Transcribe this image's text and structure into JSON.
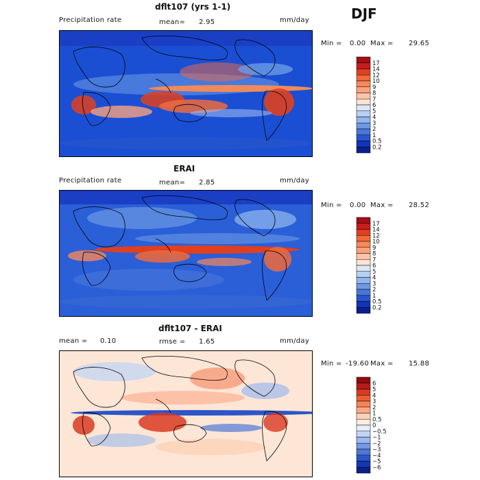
{
  "season": "DJF",
  "chart_data": [
    {
      "type": "heatmap",
      "title": "dflt107 (yrs 1-1)",
      "left_label": "Precipitation rate",
      "center_label": "mean=",
      "center_value": "2.95",
      "units": "mm/day",
      "min_max": {
        "min_label": "Min =",
        "min": "0.00",
        "max_label": "Max =",
        "max": "29.65"
      },
      "colorbar": {
        "levels": [
          "17",
          "14",
          "12",
          "10",
          "9",
          "8",
          "7",
          "6",
          "5",
          "4",
          "3",
          "2",
          "1",
          "0.5",
          "0.2"
        ],
        "colors": [
          "#a50f15",
          "#c81d1d",
          "#e0401f",
          "#f06a3a",
          "#f8875a",
          "#fba27f",
          "#fdc4a9",
          "#fde4d2",
          "#dbe7f7",
          "#b7cff2",
          "#94b5ec",
          "#6f98e4",
          "#4a77da",
          "#2a55cc",
          "#1235b8",
          "#0a1f8f"
        ]
      }
    },
    {
      "type": "heatmap",
      "title": "ERAI",
      "left_label": "Precipitation rate",
      "center_label": "mean=",
      "center_value": "2.85",
      "units": "mm/day",
      "min_max": {
        "min_label": "Min =",
        "min": "0.00",
        "max_label": "Max =",
        "max": "28.52"
      },
      "colorbar": {
        "levels": [
          "17",
          "14",
          "12",
          "10",
          "9",
          "8",
          "7",
          "6",
          "5",
          "4",
          "3",
          "2",
          "1",
          "0.5",
          "0.2"
        ],
        "colors": [
          "#a50f15",
          "#c81d1d",
          "#e0401f",
          "#f06a3a",
          "#f8875a",
          "#fba27f",
          "#fdc4a9",
          "#fde4d2",
          "#dbe7f7",
          "#b7cff2",
          "#94b5ec",
          "#6f98e4",
          "#4a77da",
          "#2a55cc",
          "#1235b8",
          "#0a1f8f"
        ]
      }
    },
    {
      "type": "heatmap",
      "title": "dflt107 - ERAI",
      "left_label": "mean =",
      "left_value": "0.10",
      "center_label": "rmse =",
      "center_value": "1.65",
      "units": "mm/day",
      "min_max": {
        "min_label": "Min =",
        "min": "-19.60",
        "max_label": "Max =",
        "max": "15.88"
      },
      "colorbar": {
        "levels": [
          "6",
          "5",
          "4",
          "3",
          "2",
          "1",
          "0.5",
          "0",
          "−0.5",
          "−1",
          "−2",
          "−3",
          "−4",
          "−5",
          "−6"
        ],
        "colors": [
          "#8e0d0d",
          "#b81a1a",
          "#d83a22",
          "#ea5f35",
          "#f5835a",
          "#fba885",
          "#fdd2b8",
          "#fdeee2",
          "#e6eefb",
          "#c2d4f4",
          "#9db9ed",
          "#7599e3",
          "#4e77d8",
          "#2c55c8",
          "#1637b0",
          "#0a2088"
        ]
      }
    }
  ]
}
